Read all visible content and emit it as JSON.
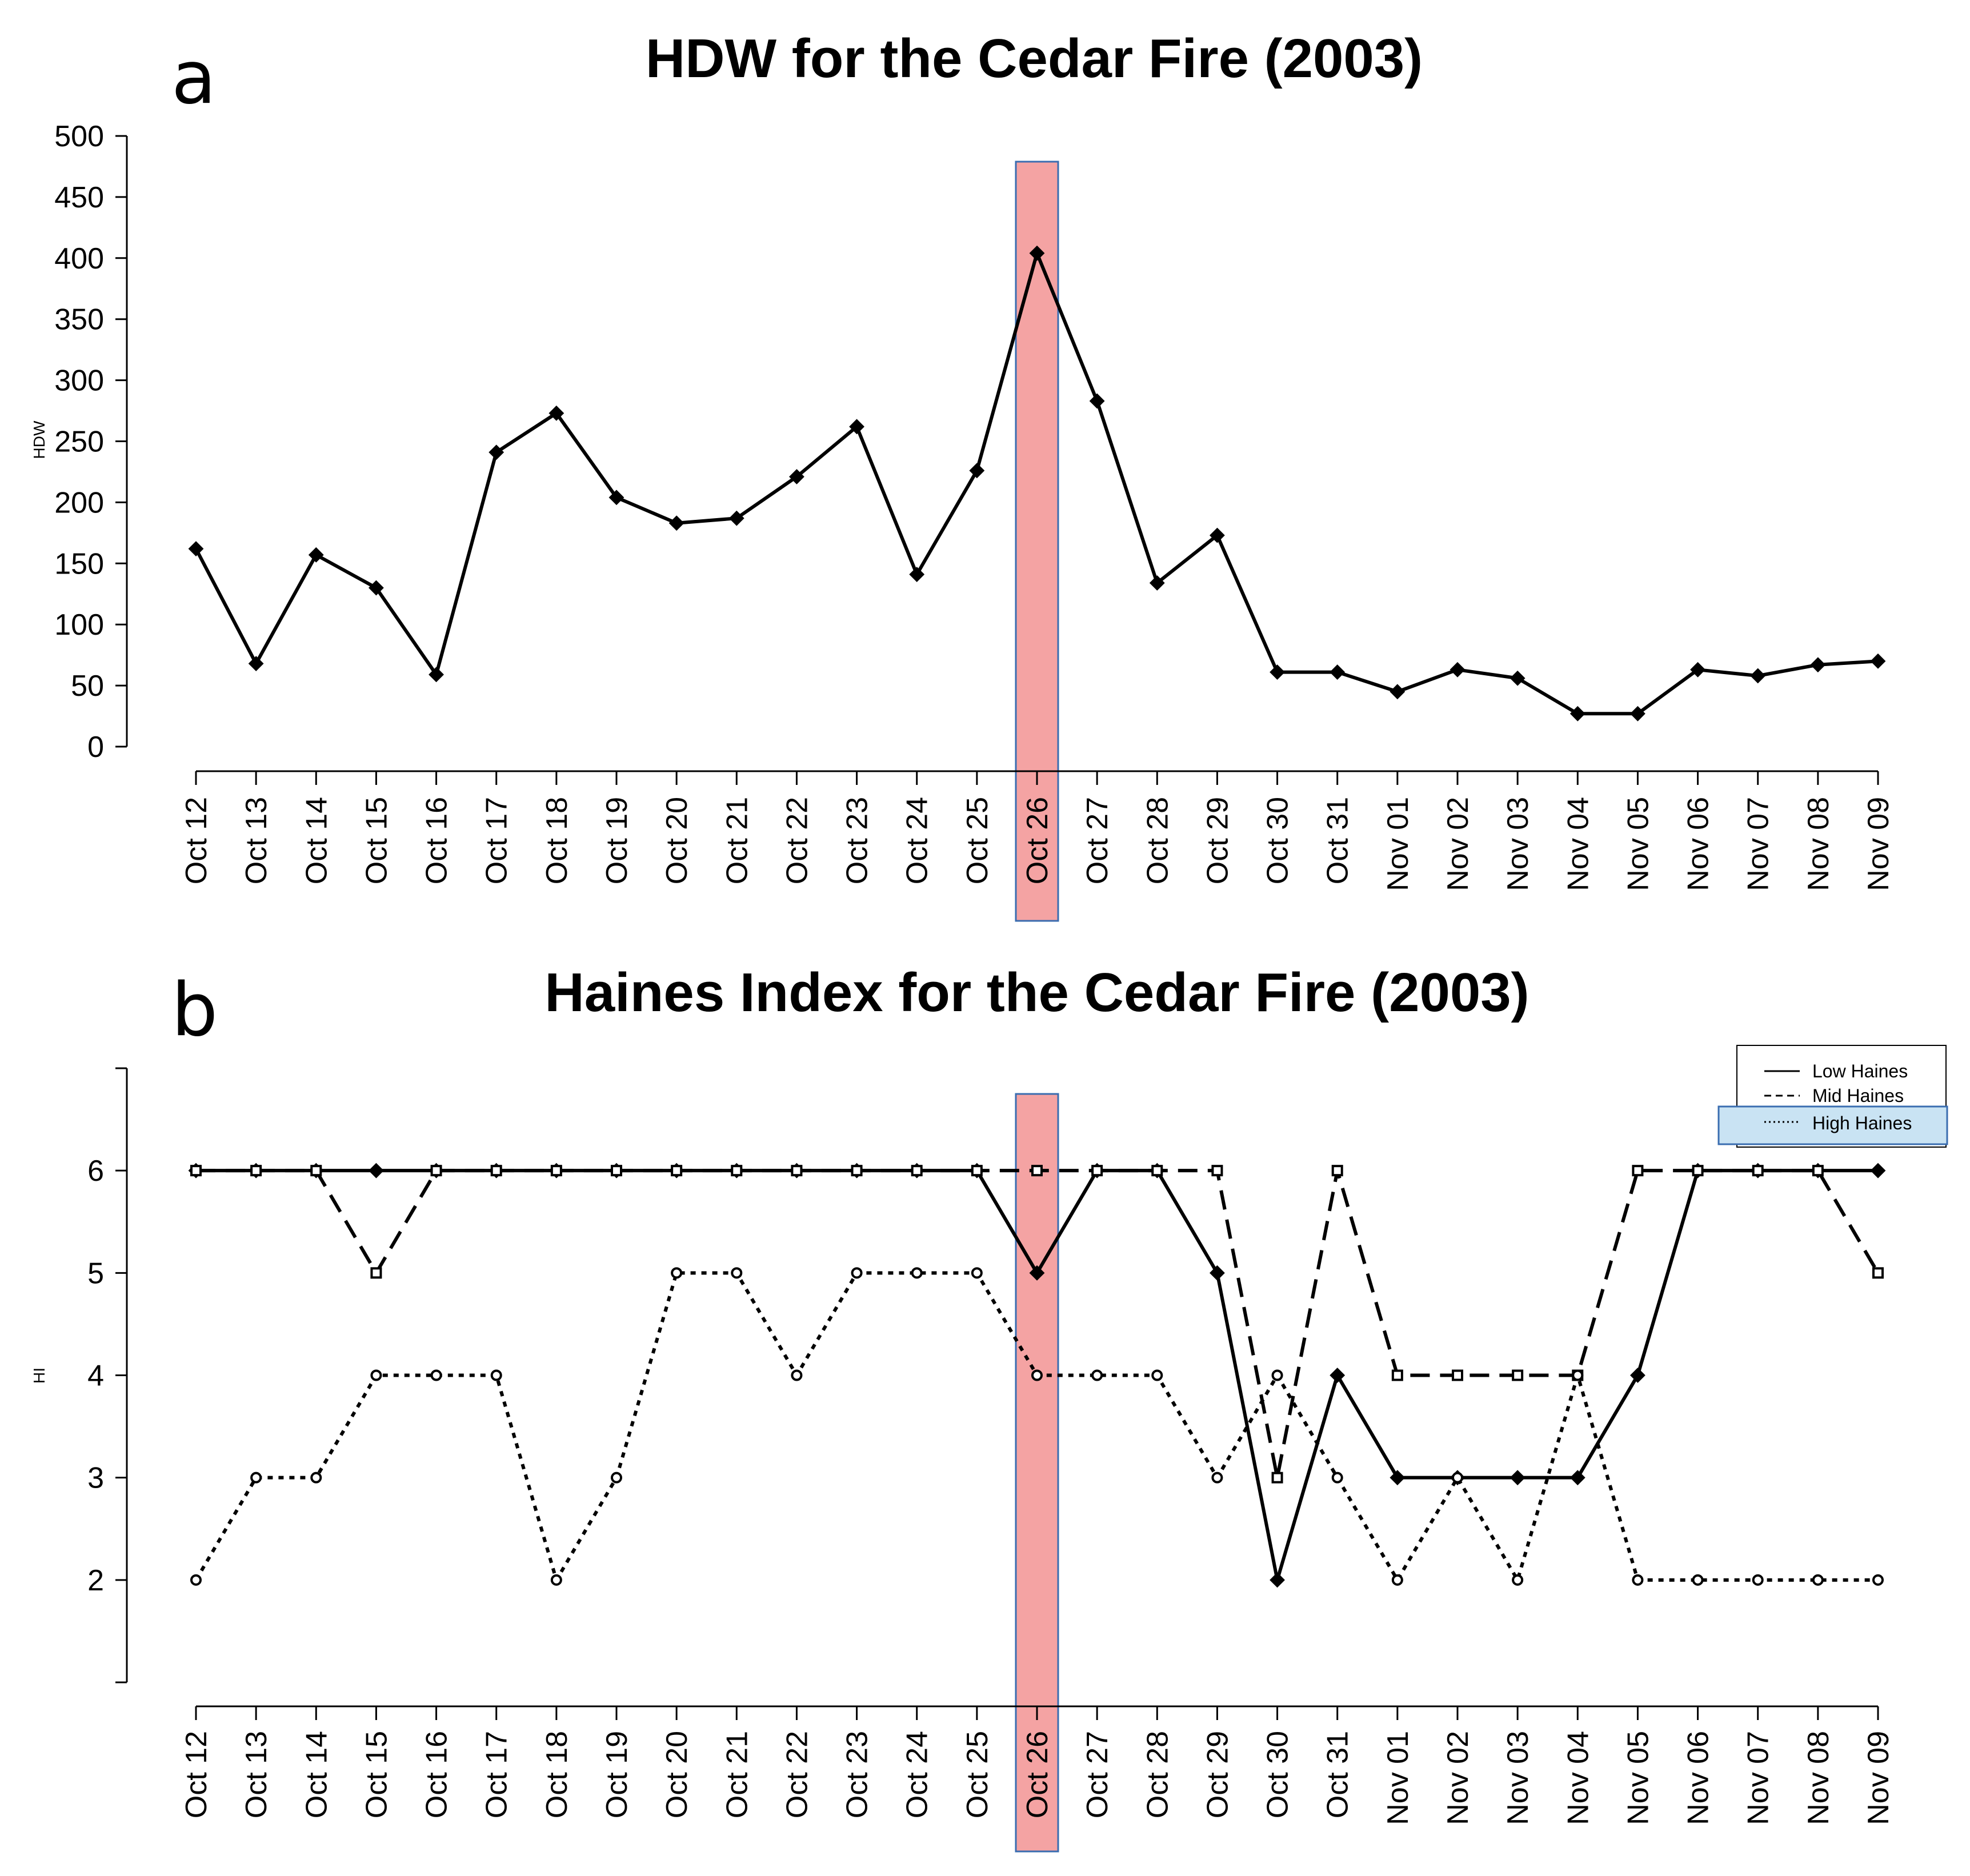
{
  "panels": {
    "a": {
      "letter": "a"
    },
    "b": {
      "letter": "b"
    }
  },
  "colors": {
    "line": "#000000",
    "highlight_fill": "#f4a3a3",
    "highlight_stroke": "#3a6db0",
    "legend_highlight": "#c9e3f3"
  },
  "highlight_category": "Oct 26",
  "chart_data": [
    {
      "type": "line",
      "title": "HDW for the Cedar Fire (2003)",
      "xlabel": "",
      "ylabel": "HDW",
      "ylim": [
        0,
        500
      ],
      "yticks": [
        0,
        50,
        100,
        150,
        200,
        250,
        300,
        350,
        400,
        450,
        500
      ],
      "categories": [
        "Oct 12",
        "Oct 13",
        "Oct 14",
        "Oct 15",
        "Oct 16",
        "Oct 17",
        "Oct 18",
        "Oct 19",
        "Oct 20",
        "Oct 21",
        "Oct 22",
        "Oct 23",
        "Oct 24",
        "Oct 25",
        "Oct 26",
        "Oct 27",
        "Oct 28",
        "Oct 29",
        "Oct 30",
        "Oct 31",
        "Nov 01",
        "Nov 02",
        "Nov 03",
        "Nov 04",
        "Nov 05",
        "Nov 06",
        "Nov 07",
        "Nov 08",
        "Nov 09"
      ],
      "series": [
        {
          "name": "HDW",
          "style": "solid",
          "marker": "diamond",
          "values": [
            162,
            68,
            157,
            130,
            59,
            241,
            273,
            204,
            183,
            187,
            221,
            262,
            141,
            226,
            404,
            283,
            134,
            173,
            61,
            61,
            45,
            63,
            56,
            27,
            27,
            63,
            58,
            67,
            70
          ]
        }
      ]
    },
    {
      "type": "line",
      "title": "Haines Index for the Cedar Fire (2003)",
      "xlabel": "",
      "ylabel": "HI",
      "ylim": [
        1,
        7
      ],
      "yticks": [
        2,
        3,
        4,
        5,
        6
      ],
      "categories": [
        "Oct 12",
        "Oct 13",
        "Oct 14",
        "Oct 15",
        "Oct 16",
        "Oct 17",
        "Oct 18",
        "Oct 19",
        "Oct 20",
        "Oct 21",
        "Oct 22",
        "Oct 23",
        "Oct 24",
        "Oct 25",
        "Oct 26",
        "Oct 27",
        "Oct 28",
        "Oct 29",
        "Oct 30",
        "Oct 31",
        "Nov 01",
        "Nov 02",
        "Nov 03",
        "Nov 04",
        "Nov 05",
        "Nov 06",
        "Nov 07",
        "Nov 08",
        "Nov 09"
      ],
      "legend": {
        "position": "top-right",
        "highlighted_entry": "High Haines"
      },
      "series": [
        {
          "name": "Low Haines",
          "style": "solid",
          "marker": "diamond",
          "values": [
            6,
            6,
            6,
            6,
            6,
            6,
            6,
            6,
            6,
            6,
            6,
            6,
            6,
            6,
            5,
            6,
            6,
            5,
            2,
            4,
            3,
            3,
            3,
            3,
            4,
            6,
            6,
            6,
            6
          ]
        },
        {
          "name": "Mid Haines",
          "style": "dashed",
          "marker": "square",
          "values": [
            6,
            6,
            6,
            5,
            6,
            6,
            6,
            6,
            6,
            6,
            6,
            6,
            6,
            6,
            6,
            6,
            6,
            6,
            3,
            6,
            4,
            4,
            4,
            4,
            6,
            6,
            6,
            6,
            5
          ]
        },
        {
          "name": "High Haines",
          "style": "dotted",
          "marker": "circle",
          "values": [
            2,
            3,
            3,
            4,
            4,
            4,
            2,
            3,
            5,
            5,
            4,
            5,
            5,
            5,
            4,
            4,
            4,
            3,
            4,
            3,
            2,
            3,
            2,
            4,
            2,
            2,
            2,
            2,
            2
          ]
        }
      ]
    }
  ]
}
